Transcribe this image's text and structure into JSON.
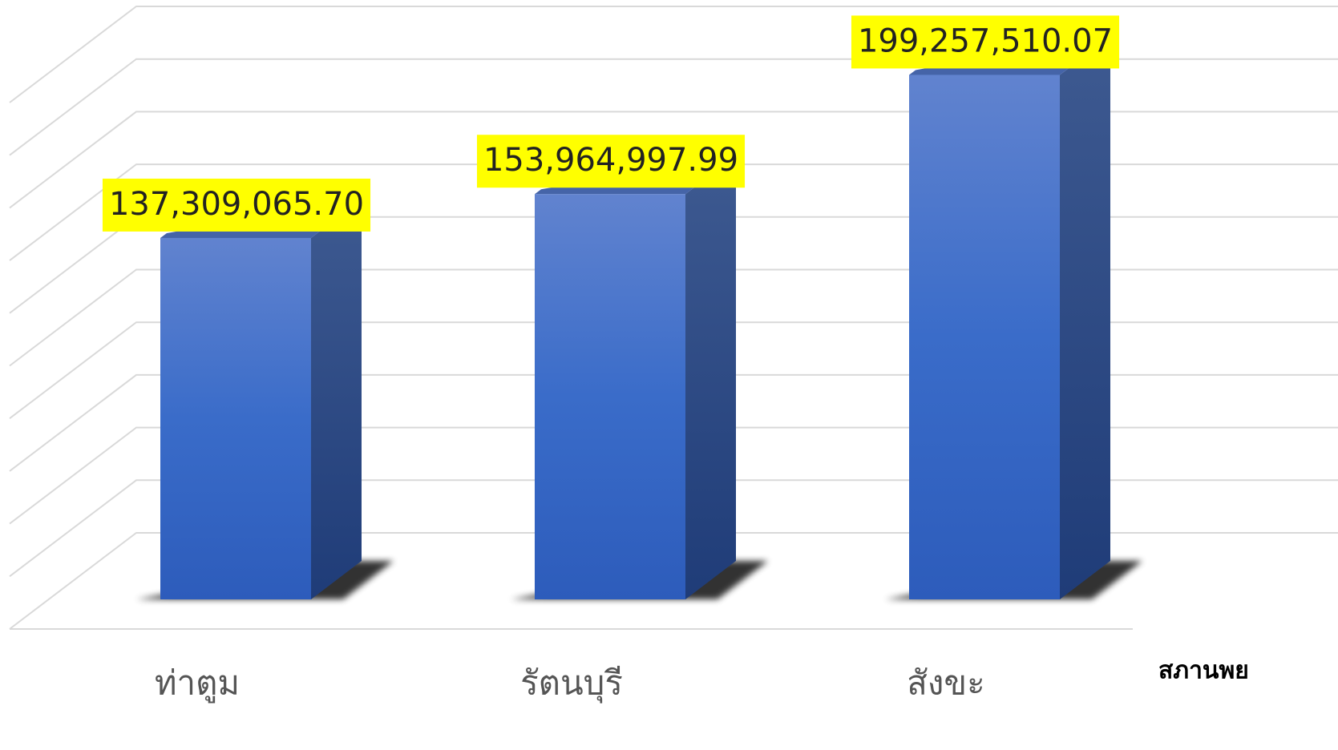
{
  "chart_data": {
    "type": "bar3d",
    "categories": [
      "ท่าตูม",
      "รัตนบุรี",
      "สังขะ"
    ],
    "values": [
      137309065.7,
      153964997.99,
      199257510.07
    ],
    "value_labels": [
      "137,309,065.70",
      "153,964,997.99",
      "199,257,510.07"
    ],
    "color": "#3a6cc9",
    "ylim": [
      0,
      200000000
    ],
    "yticks": [
      0,
      20000000,
      40000000,
      60000000,
      80000000,
      100000000,
      120000000,
      140000000,
      160000000,
      180000000,
      200000000
    ],
    "grid": true,
    "annotation": "สภานพย"
  }
}
